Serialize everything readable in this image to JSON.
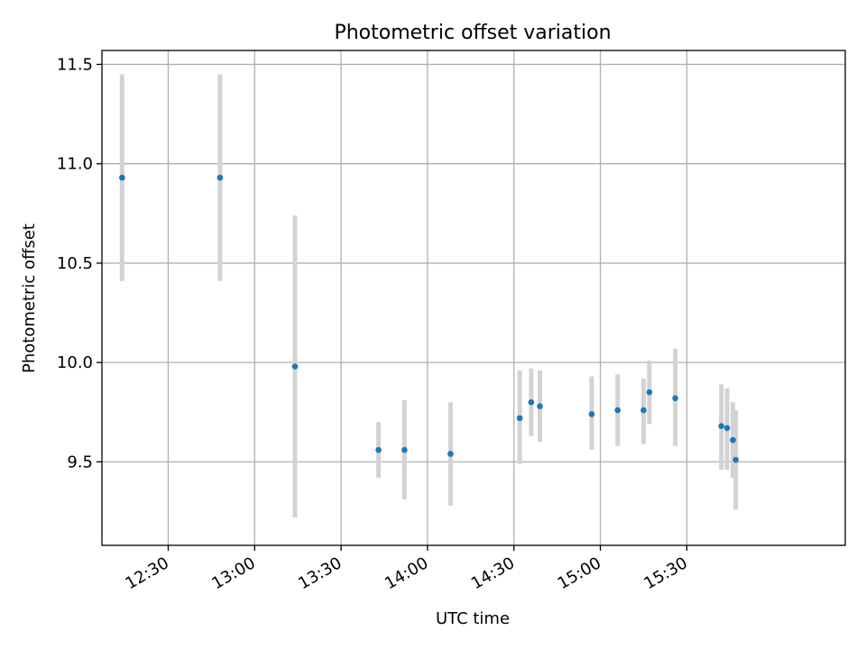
{
  "chart_data": {
    "type": "scatter",
    "title": "Photometric offset variation",
    "xlabel": "UTC time",
    "ylabel": "Photometric offset",
    "x_unit": "UTC time of day",
    "xlim": [
      "12:07",
      "16:25"
    ],
    "ylim": [
      9.08,
      11.57
    ],
    "x_ticks": [
      "12:30",
      "13:00",
      "13:30",
      "14:00",
      "14:30",
      "15:00",
      "15:30"
    ],
    "y_ticks": [
      "9.5",
      "10.0",
      "10.5",
      "11.0",
      "11.5"
    ],
    "grid": true,
    "marker_color": "#1f77b4",
    "errorbar_color": "#d3d3d3",
    "points": [
      {
        "x": "12:14",
        "y": 10.93,
        "low": 10.41,
        "high": 11.45
      },
      {
        "x": "12:48",
        "y": 10.93,
        "low": 10.41,
        "high": 11.45
      },
      {
        "x": "13:14",
        "y": 9.98,
        "low": 9.22,
        "high": 10.74
      },
      {
        "x": "13:43",
        "y": 9.56,
        "low": 9.42,
        "high": 9.7
      },
      {
        "x": "13:52",
        "y": 9.56,
        "low": 9.31,
        "high": 9.81
      },
      {
        "x": "14:08",
        "y": 9.54,
        "low": 9.28,
        "high": 9.8
      },
      {
        "x": "14:32",
        "y": 9.72,
        "low": 9.49,
        "high": 9.96
      },
      {
        "x": "14:36",
        "y": 9.8,
        "low": 9.63,
        "high": 9.97
      },
      {
        "x": "14:39",
        "y": 9.78,
        "low": 9.6,
        "high": 9.96
      },
      {
        "x": "14:57",
        "y": 9.74,
        "low": 9.56,
        "high": 9.93
      },
      {
        "x": "15:06",
        "y": 9.76,
        "low": 9.58,
        "high": 9.94
      },
      {
        "x": "15:15",
        "y": 9.76,
        "low": 9.59,
        "high": 9.92
      },
      {
        "x": "15:17",
        "y": 9.85,
        "low": 9.69,
        "high": 10.01
      },
      {
        "x": "15:26",
        "y": 9.82,
        "low": 9.58,
        "high": 10.07
      },
      {
        "x": "15:42",
        "y": 9.68,
        "low": 9.46,
        "high": 9.89
      },
      {
        "x": "15:44",
        "y": 9.67,
        "low": 9.46,
        "high": 9.87
      },
      {
        "x": "15:46",
        "y": 9.61,
        "low": 9.42,
        "high": 9.8
      },
      {
        "x": "15:47",
        "y": 9.51,
        "low": 9.26,
        "high": 9.76
      }
    ]
  }
}
